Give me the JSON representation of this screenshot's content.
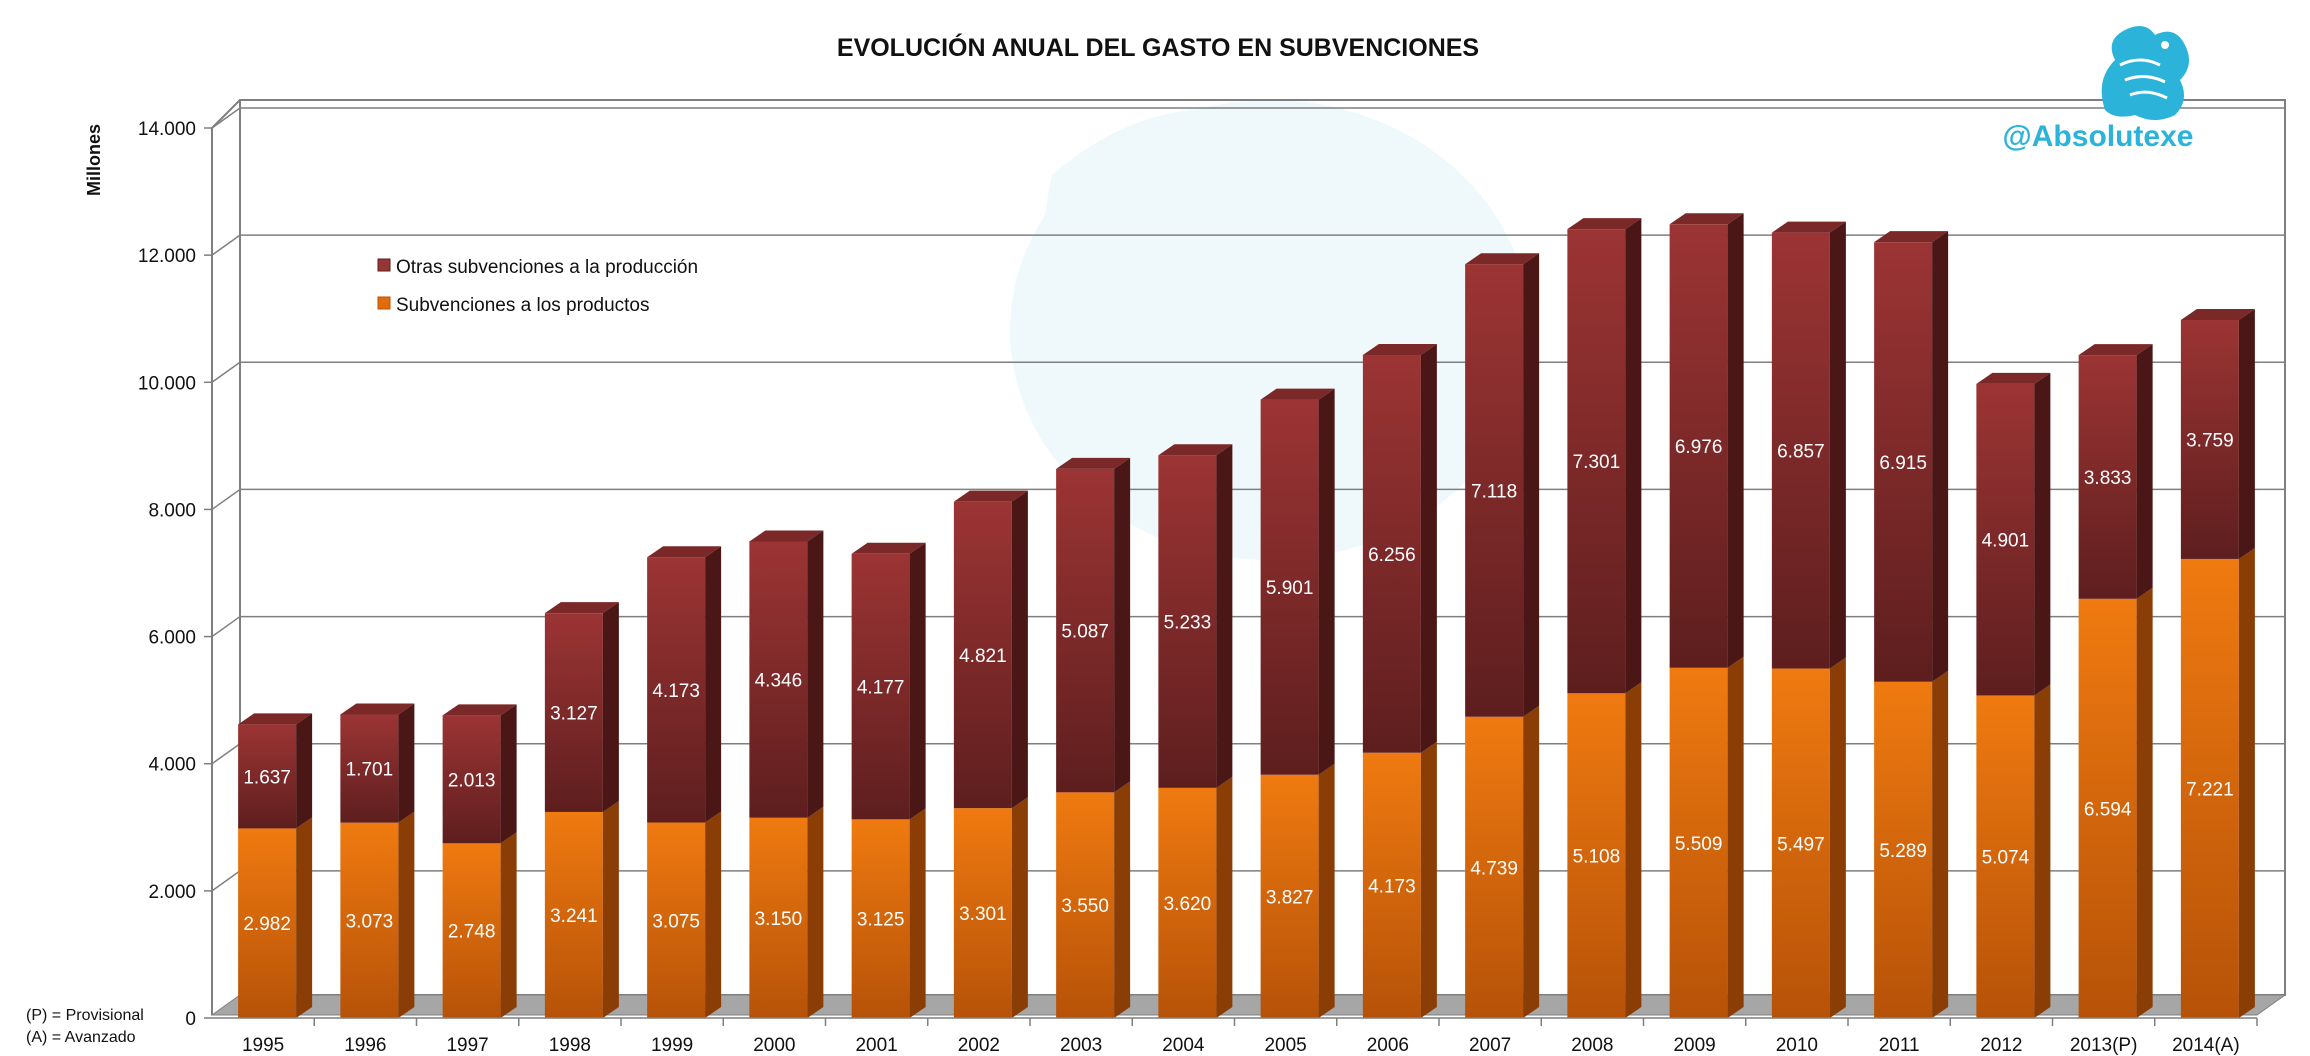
{
  "chart_data": {
    "type": "bar",
    "stacked": true,
    "title": "EVOLUCIÓN ANUAL DEL GASTO EN SUBVENCIONES",
    "ylabel": "Millones",
    "xlabel": "",
    "ylim": [
      0,
      14000
    ],
    "yticks": [
      "0",
      "2.000",
      "4.000",
      "6.000",
      "8.000",
      "10.000",
      "12.000",
      "14.000"
    ],
    "grid": true,
    "legend_position": "top-left",
    "categories": [
      "1995",
      "1996",
      "1997",
      "1998",
      "1999",
      "2000",
      "2001",
      "2002",
      "2003",
      "2004",
      "2005",
      "2006",
      "2007",
      "2008",
      "2009",
      "2010",
      "2011",
      "2012",
      "2013(P)",
      "2014(A)"
    ],
    "series": [
      {
        "name": "Subvenciones a los productos",
        "color": "#e36c0a",
        "values": [
          2982,
          3073,
          2748,
          3241,
          3075,
          3150,
          3125,
          3301,
          3550,
          3620,
          3827,
          4173,
          4739,
          5108,
          5509,
          5497,
          5289,
          5074,
          6594,
          7221
        ],
        "labels": [
          "2.982",
          "3.073",
          "2.748",
          "3.241",
          "3.075",
          "3.150",
          "3.125",
          "3.301",
          "3.550",
          "3.620",
          "3.827",
          "4.173",
          "4.739",
          "5.108",
          "5.509",
          "5.497",
          "5.289",
          "5.074",
          "6.594",
          "7.221"
        ]
      },
      {
        "name": "Otras subvenciones a la producción",
        "color": "#953735",
        "values": [
          1637,
          1701,
          2013,
          3127,
          4173,
          4346,
          4177,
          4821,
          5087,
          5233,
          5901,
          6256,
          7118,
          7301,
          6976,
          6857,
          6915,
          4901,
          3833,
          3759
        ],
        "labels": [
          "1.637",
          "1.701",
          "2.013",
          "3.127",
          "4.173",
          "4.346",
          "4.177",
          "4.821",
          "5.087",
          "5.233",
          "5.901",
          "6.256",
          "7.118",
          "7.301",
          "6.976",
          "6.857",
          "6.915",
          "4.901",
          "3.833",
          "3.759"
        ]
      }
    ]
  },
  "notes": {
    "provisional": "(P) = Provisional",
    "avanzado": "(A) = Avanzado"
  },
  "brand": {
    "handle": "@Absolutexe",
    "logo_icon": "griffin-icon",
    "color": "#2bb3d9"
  }
}
